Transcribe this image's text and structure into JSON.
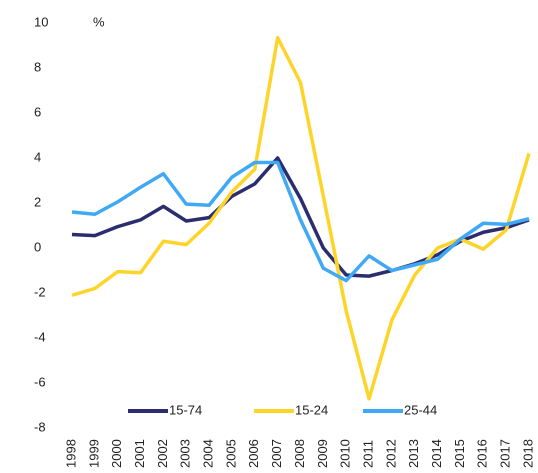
{
  "chart_data": {
    "type": "line",
    "ylabel": "%",
    "categories": [
      "1998",
      "1999",
      "2000",
      "2001",
      "2002",
      "2003",
      "2004",
      "2005",
      "2006",
      "2007",
      "2008",
      "2009",
      "2010",
      "2011",
      "2012",
      "2013",
      "2014",
      "2015",
      "2016",
      "2017",
      "2018"
    ],
    "series": [
      {
        "name": "15-74",
        "color": "#2b2d6e",
        "values": [
          0.6,
          0.55,
          0.95,
          1.25,
          1.85,
          1.2,
          1.35,
          2.3,
          2.85,
          4.0,
          2.2,
          0.0,
          -1.2,
          -1.25,
          -1.0,
          -0.7,
          -0.3,
          0.3,
          0.7,
          0.9,
          1.25
        ]
      },
      {
        "name": "15-24",
        "color": "#ffd42a",
        "values": [
          -2.1,
          -1.8,
          -1.05,
          -1.1,
          0.3,
          0.15,
          1.1,
          2.5,
          3.5,
          9.35,
          7.35,
          2.3,
          -2.8,
          -6.7,
          -3.2,
          -1.2,
          0.0,
          0.4,
          -0.05,
          0.8,
          4.2
        ]
      },
      {
        "name": "25-44",
        "color": "#3fa9f5",
        "values": [
          1.6,
          1.5,
          2.05,
          2.7,
          3.3,
          1.95,
          1.9,
          3.15,
          3.8,
          3.8,
          1.25,
          -0.9,
          -1.45,
          -0.35,
          -1.0,
          -0.75,
          -0.5,
          0.4,
          1.1,
          1.05,
          1.3
        ]
      }
    ],
    "ylim": [
      -8,
      10
    ],
    "yticks": [
      -8,
      -6,
      -4,
      -2,
      0,
      2,
      4,
      6,
      8,
      10
    ],
    "grid": false,
    "legend": "bottom"
  }
}
